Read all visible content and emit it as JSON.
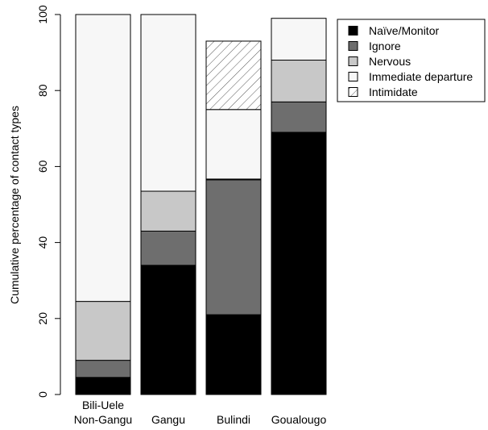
{
  "chart_data": {
    "type": "bar",
    "stacked": true,
    "ylabel": "Cumulative percentage of contact types",
    "xlabel": "",
    "ylim": [
      0,
      100
    ],
    "yticks": [
      0,
      20,
      40,
      60,
      80,
      100
    ],
    "categories": [
      [
        "Bili-Uele",
        "Non-Gangu"
      ],
      [
        "Gangu"
      ],
      [
        "Bulindi"
      ],
      [
        "Goualougo"
      ]
    ],
    "series": [
      {
        "name": "Naïve/Monitor",
        "color": "#000000",
        "pattern": "solid",
        "values": [
          4.5,
          34,
          21,
          69
        ]
      },
      {
        "name": "Ignore",
        "color": "#6e6e6e",
        "pattern": "solid",
        "values": [
          4.5,
          9,
          35.5,
          8
        ]
      },
      {
        "name": "Nervous",
        "color": "#c8c8c8",
        "pattern": "solid",
        "values": [
          15.5,
          10.5,
          0.2,
          11
        ]
      },
      {
        "name": "Immediate departure",
        "color": "#f7f7f7",
        "pattern": "solid",
        "values": [
          75.5,
          46.5,
          18.3,
          11
        ]
      },
      {
        "name": "Intimidate",
        "color": "#ffffff",
        "pattern": "hatch",
        "values": [
          0,
          0,
          18,
          0
        ]
      }
    ],
    "legend": "top-right",
    "grid": false
  }
}
